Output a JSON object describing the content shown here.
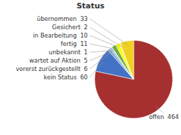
{
  "chart_data": {
    "type": "pie",
    "title": "Status",
    "categories": [
      "offen",
      "kein Status",
      "vorerst zurückgestellt",
      "wartet auf Aktion",
      "unbekannt",
      "fertig",
      "in Bearbeitung",
      "Gesichert",
      "übernommen"
    ],
    "values": [
      464,
      60,
      6,
      5,
      1,
      11,
      10,
      2,
      33
    ],
    "colors": [
      "#a63030",
      "#4472c4",
      "#6fa0cc",
      "#9dbbd8",
      "#c5d9ea",
      "#70ad47",
      "#ffff00",
      "#c0c0c0",
      "#f0d020"
    ],
    "data_labels": true
  }
}
